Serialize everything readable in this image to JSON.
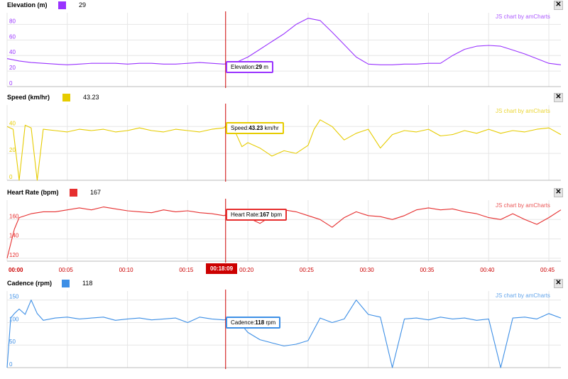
{
  "panels": [
    {
      "id": "elevation",
      "title": "Elevation (m)",
      "current_value": "29",
      "color": "#9933ff",
      "credit": "JS chart by amCharts",
      "balloon_label": "Elevation:",
      "balloon_value": "29",
      "balloon_unit": "m"
    },
    {
      "id": "speed",
      "title": "Speed (km/hr)",
      "current_value": "43.23",
      "color": "#e6cc00",
      "credit": "JS chart by amCharts",
      "balloon_label": "Speed:",
      "balloon_value": "43.23",
      "balloon_unit": "km/hr"
    },
    {
      "id": "heartrate",
      "title": "Heart Rate (bpm)",
      "current_value": "167",
      "color": "#e62e2e",
      "credit": "JS chart by amCharts",
      "balloon_label": "Heart Rate:",
      "balloon_value": "167",
      "balloon_unit": "bpm"
    },
    {
      "id": "cadence",
      "title": "Cadence (rpm)",
      "current_value": "118",
      "color": "#3d8fe6",
      "credit": "JS chart by amCharts",
      "balloon_label": "Cadence:",
      "balloon_value": "118",
      "balloon_unit": "rpm"
    }
  ],
  "close_label": "✕",
  "cursor_time": "00:18:09",
  "x_tick_labels": [
    "00:00",
    "00:05",
    "00:10",
    "00:15",
    "00:20",
    "00:25",
    "00:30",
    "00:35",
    "00:40",
    "00:45"
  ],
  "chart_data": [
    {
      "type": "line",
      "title": "Elevation (m)",
      "ylabel": "",
      "xlabel": "",
      "x_unit": "minutes",
      "ylim": [
        0,
        95
      ],
      "y_ticks": [
        0,
        20,
        40,
        60,
        80
      ],
      "grid": true,
      "series": [
        {
          "name": "Elevation (m)",
          "x": [
            0,
            1,
            2,
            3,
            4,
            5,
            6,
            7,
            8,
            9,
            10,
            11,
            12,
            13,
            14,
            15,
            16,
            17,
            18,
            19,
            20,
            21,
            22,
            23,
            24,
            25,
            26,
            27,
            28,
            29,
            30,
            31,
            32,
            33,
            34,
            35,
            36,
            37,
            38,
            39,
            40,
            41,
            42,
            43,
            44,
            45,
            46
          ],
          "y": [
            36,
            33,
            31,
            30,
            29,
            28,
            29,
            30,
            30,
            30,
            29,
            30,
            30,
            29,
            29,
            30,
            31,
            30,
            29,
            31,
            38,
            48,
            58,
            68,
            80,
            88,
            85,
            70,
            54,
            38,
            29,
            28,
            28,
            29,
            29,
            30,
            30,
            40,
            48,
            52,
            53,
            52,
            47,
            42,
            36,
            30,
            28
          ]
        }
      ]
    },
    {
      "type": "line",
      "title": "Speed (km/hr)",
      "ylabel": "",
      "xlabel": "",
      "x_unit": "minutes",
      "ylim": [
        0,
        56
      ],
      "y_ticks": [
        0,
        20,
        40
      ],
      "grid": true,
      "series": [
        {
          "name": "Speed (km/hr)",
          "x": [
            0,
            0.5,
            1,
            1.5,
            2,
            2.5,
            3,
            4,
            5,
            6,
            7,
            8,
            9,
            10,
            11,
            12,
            13,
            14,
            15,
            16,
            17,
            18,
            18.5,
            19,
            19.5,
            20,
            21,
            22,
            23,
            24,
            25,
            25.5,
            26,
            27,
            28,
            29,
            30,
            31,
            32,
            33,
            34,
            35,
            36,
            37,
            38,
            39,
            40,
            41,
            42,
            43,
            44,
            45,
            46
          ],
          "y": [
            40,
            38,
            0,
            41,
            39,
            0,
            38,
            37,
            36,
            38,
            37,
            38,
            36,
            37,
            39,
            37,
            36,
            38,
            37,
            36,
            38,
            39,
            43,
            35,
            25,
            28,
            24,
            18,
            22,
            20,
            26,
            38,
            45,
            40,
            30,
            35,
            38,
            24,
            34,
            37,
            36,
            38,
            33,
            34,
            37,
            35,
            38,
            35,
            37,
            36,
            38,
            39,
            34
          ]
        }
      ]
    },
    {
      "type": "line",
      "title": "Heart Rate (bpm)",
      "ylabel": "",
      "xlabel": "",
      "x_unit": "minutes",
      "ylim": [
        117,
        180
      ],
      "y_ticks": [
        120,
        140,
        160
      ],
      "grid": true,
      "series": [
        {
          "name": "Heart Rate (bpm)",
          "x": [
            0,
            0.3,
            0.6,
            1,
            2,
            3,
            4,
            5,
            6,
            7,
            8,
            9,
            10,
            11,
            12,
            13,
            14,
            15,
            16,
            17,
            18,
            19,
            20,
            21,
            22,
            23,
            24,
            25,
            26,
            27,
            28,
            29,
            30,
            31,
            32,
            33,
            34,
            35,
            36,
            37,
            38,
            39,
            40,
            41,
            42,
            43,
            44,
            45,
            46
          ],
          "y": [
            120,
            135,
            150,
            162,
            166,
            168,
            168,
            170,
            172,
            170,
            173,
            171,
            169,
            168,
            167,
            170,
            168,
            169,
            167,
            166,
            164,
            168,
            162,
            156,
            164,
            170,
            168,
            164,
            160,
            152,
            162,
            168,
            164,
            163,
            160,
            164,
            170,
            172,
            170,
            171,
            168,
            166,
            162,
            160,
            166,
            160,
            155,
            162,
            170
          ]
        }
      ]
    },
    {
      "type": "line",
      "title": "Cadence (rpm)",
      "ylabel": "",
      "xlabel": "",
      "x_unit": "minutes",
      "ylim": [
        0,
        170
      ],
      "y_ticks": [
        0,
        50,
        100,
        150
      ],
      "grid": true,
      "series": [
        {
          "name": "Cadence (rpm)",
          "x": [
            0,
            0.3,
            0.6,
            1,
            1.5,
            2,
            2.5,
            3,
            4,
            5,
            6,
            7,
            8,
            9,
            10,
            11,
            12,
            13,
            14,
            15,
            16,
            17,
            18,
            19,
            20,
            21,
            22,
            23,
            24,
            25,
            26,
            27,
            28,
            29,
            30,
            31,
            32,
            33,
            34,
            35,
            36,
            37,
            38,
            39,
            40,
            41,
            42,
            43,
            44,
            45,
            46
          ],
          "y": [
            0,
            110,
            120,
            130,
            118,
            150,
            120,
            105,
            110,
            112,
            108,
            110,
            112,
            105,
            108,
            110,
            106,
            108,
            110,
            100,
            112,
            108,
            106,
            110,
            78,
            62,
            55,
            48,
            52,
            60,
            110,
            100,
            108,
            150,
            118,
            112,
            0,
            108,
            110,
            106,
            112,
            108,
            110,
            105,
            108,
            0,
            110,
            112,
            108,
            120,
            110
          ]
        }
      ]
    }
  ]
}
